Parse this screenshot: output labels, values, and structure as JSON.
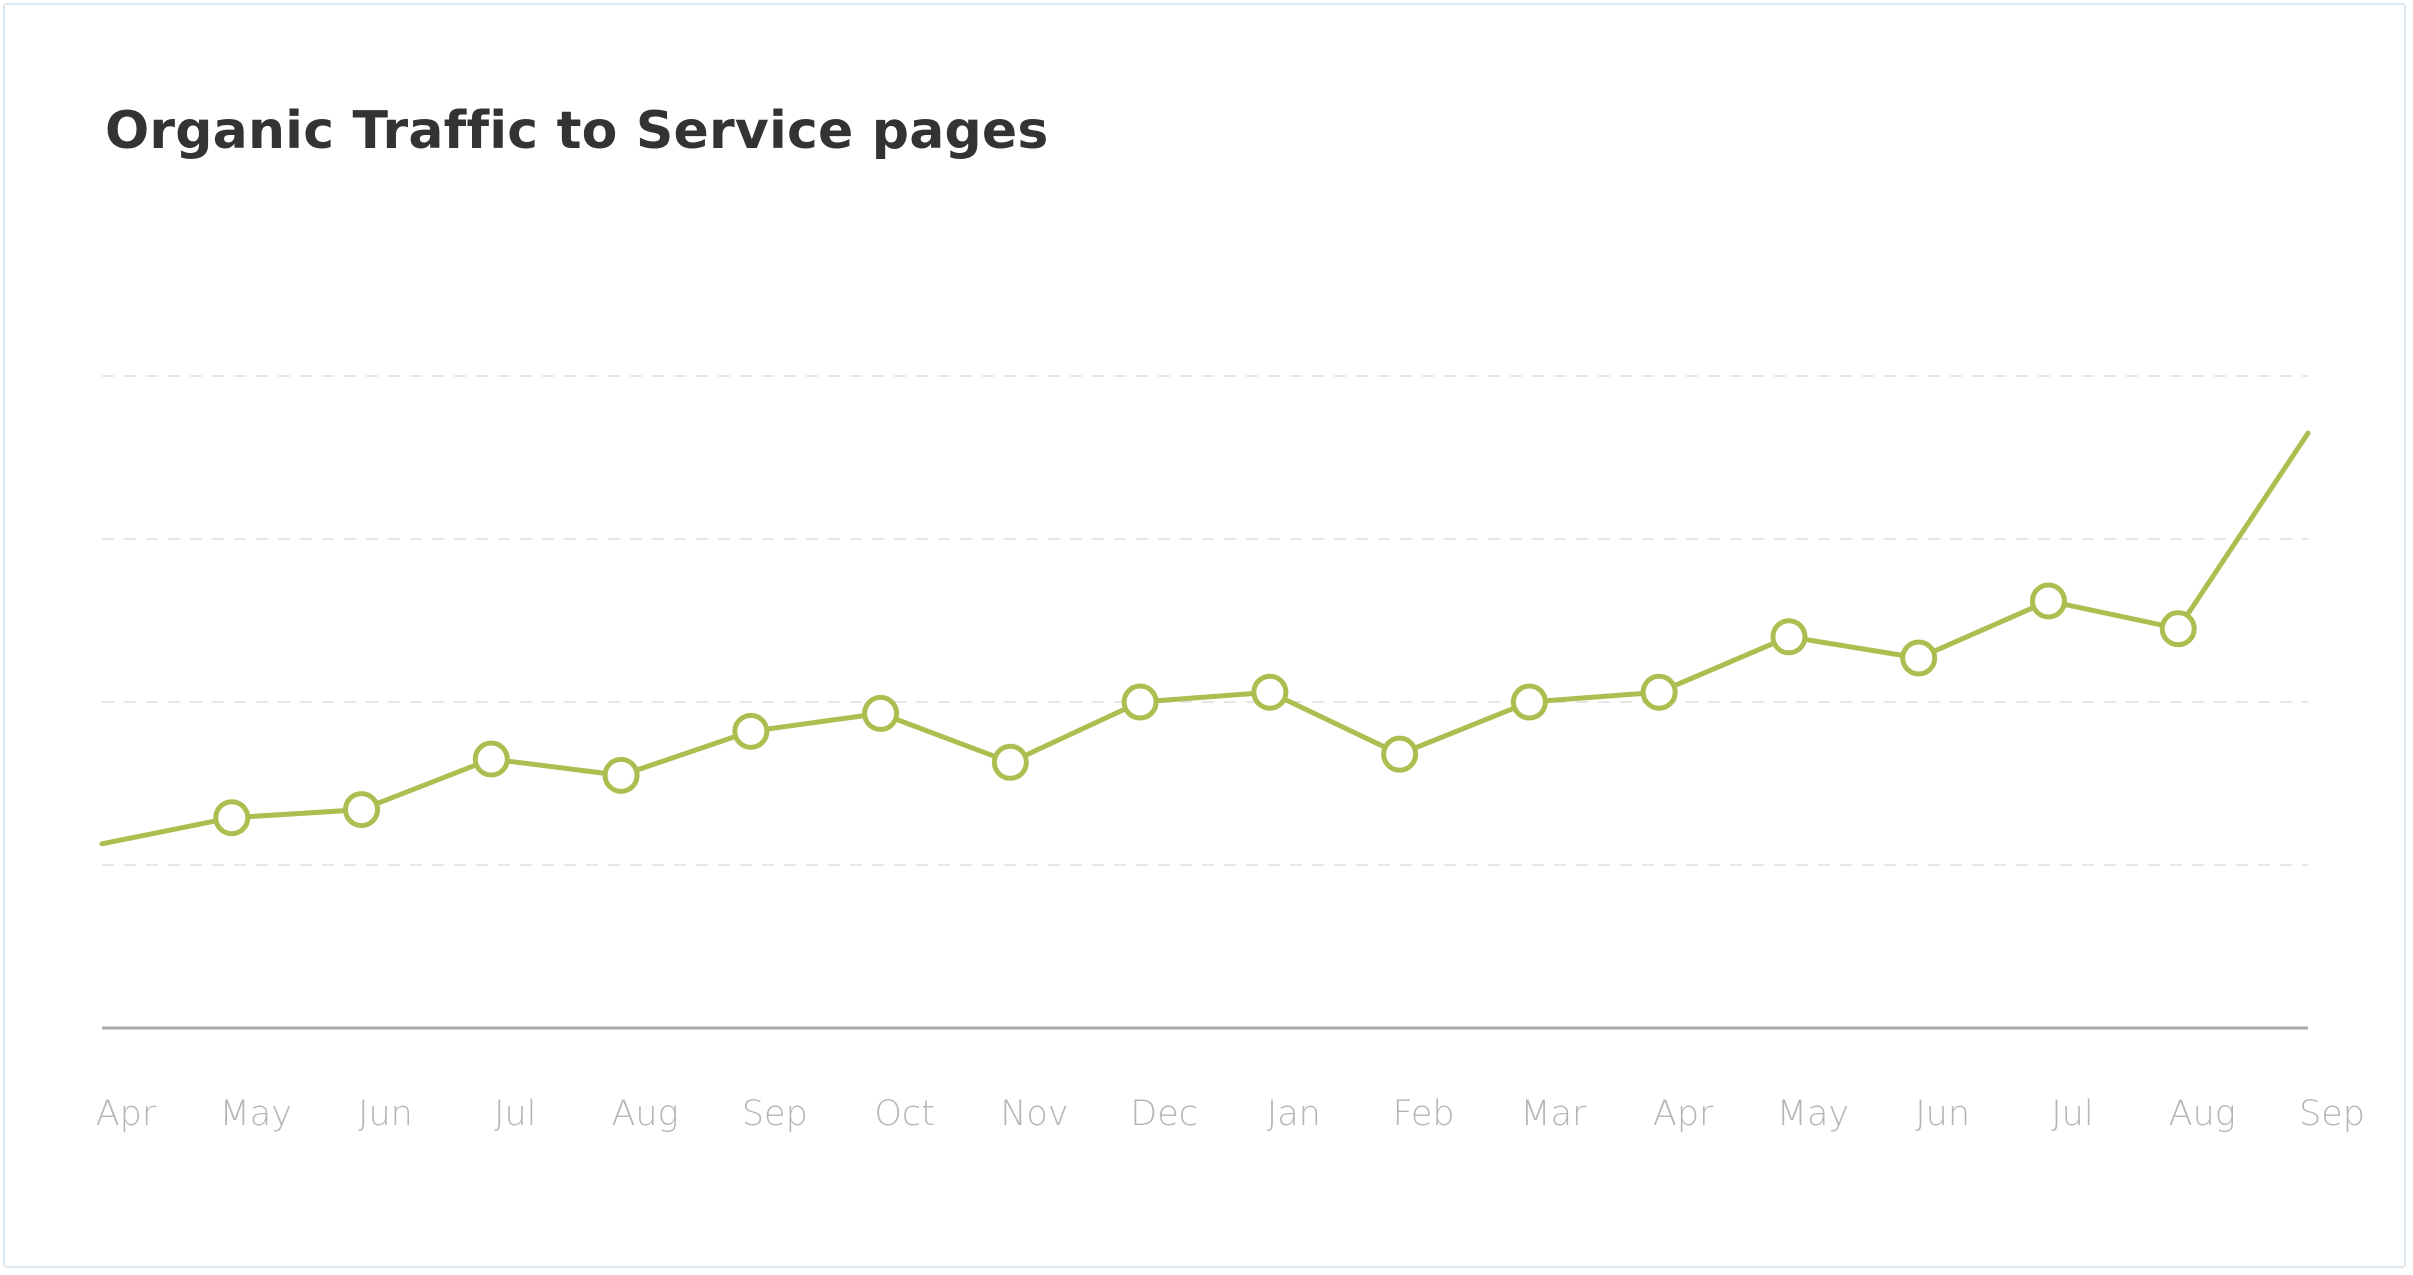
{
  "chart_data": {
    "type": "line",
    "title": "Organic Traffic to Service pages",
    "xlabel": "",
    "ylabel": "",
    "categories": [
      "Apr",
      "May",
      "Jun",
      "Jul",
      "Aug",
      "Sep",
      "Oct",
      "Nov",
      "Dec",
      "Jan",
      "Feb",
      "Mar",
      "Apr",
      "May",
      "Jun",
      "Jul",
      "Aug",
      "Sep"
    ],
    "series": [
      {
        "values": [
          1.13,
          1.29,
          1.34,
          1.65,
          1.55,
          1.82,
          1.93,
          1.63,
          2.0,
          2.06,
          1.68,
          2.0,
          2.06,
          2.4,
          2.27,
          2.62,
          2.45,
          3.65
        ],
        "markers": [
          false,
          true,
          true,
          true,
          true,
          true,
          true,
          true,
          true,
          true,
          true,
          true,
          true,
          true,
          true,
          true,
          true,
          false
        ],
        "color": "#aabf4f"
      }
    ],
    "ylim": [
      0,
      4
    ],
    "y_gridlines": [
      1,
      2,
      3,
      4
    ],
    "grid": "horizontal-dashed",
    "legend": "none",
    "colors": {
      "line": "#aabf4f",
      "marker_fill": "#ffffff",
      "gridline": "#e6e6e6",
      "axis": "#a9a9a9",
      "tick_label": "#b5b5b5",
      "title": "#333333"
    }
  }
}
